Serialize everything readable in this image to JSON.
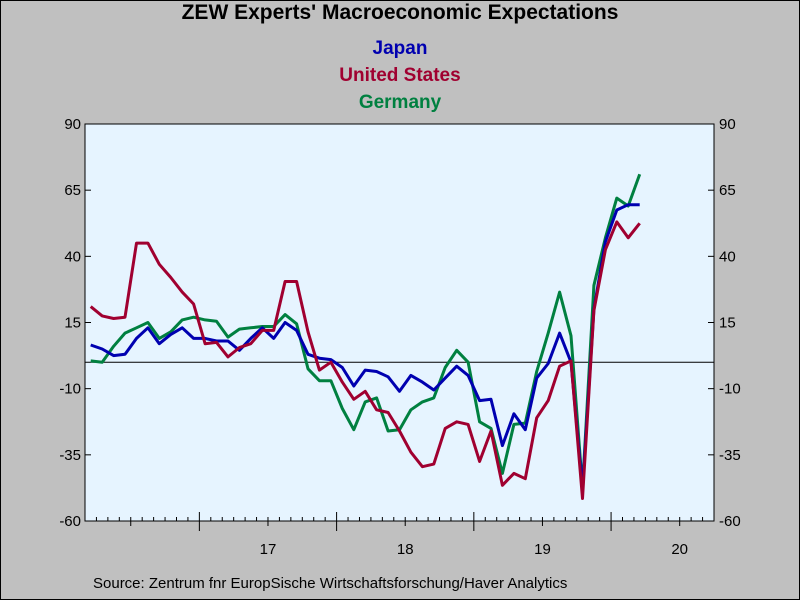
{
  "chart_data": {
    "type": "line",
    "title": "ZEW Experts' Macroeconomic Expectations",
    "source": "Source:  Zentrum fnr EuropSische Wirtschaftsforschung/Haver Analytics",
    "ylim": [
      -60,
      90
    ],
    "yticks": [
      90,
      65,
      40,
      15,
      -10,
      -35,
      -60
    ],
    "year_labels": [
      "17",
      "18",
      "19",
      "20"
    ],
    "x": [
      "2016-03",
      "2016-04",
      "2016-05",
      "2016-06",
      "2016-07",
      "2016-08",
      "2016-09",
      "2016-10",
      "2016-11",
      "2016-12",
      "2017-01",
      "2017-02",
      "2017-03",
      "2017-04",
      "2017-05",
      "2017-06",
      "2017-07",
      "2017-08",
      "2017-09",
      "2017-10",
      "2017-11",
      "2017-12",
      "2018-01",
      "2018-02",
      "2018-03",
      "2018-04",
      "2018-05",
      "2018-06",
      "2018-07",
      "2018-08",
      "2018-09",
      "2018-10",
      "2018-11",
      "2018-12",
      "2019-01",
      "2019-02",
      "2019-03",
      "2019-04",
      "2019-05",
      "2019-06",
      "2019-07",
      "2019-08",
      "2019-09",
      "2019-10",
      "2019-11",
      "2019-12",
      "2020-01",
      "2020-02",
      "2020-03",
      "2020-04",
      "2020-05",
      "2020-06",
      "2020-07",
      "2020-08",
      "2020-09"
    ],
    "reference_line": 0,
    "grid": false,
    "legend_position": "top",
    "series": [
      {
        "name": "Japan",
        "color": "#0000b0",
        "values": [
          6.5,
          5,
          2.5,
          3,
          9,
          13,
          7,
          10.5,
          13,
          9,
          9,
          8,
          8,
          4.5,
          9,
          13,
          9,
          15,
          12,
          3,
          1.5,
          1,
          -2,
          -9,
          -3,
          -3.5,
          -5.5,
          -11,
          -5,
          -7.5,
          -10.5,
          -6,
          -1.5,
          -5,
          -14.5,
          -14,
          -31.5,
          -19.5,
          -25.5,
          -6,
          -0.5,
          11,
          0,
          -48,
          20,
          45.5,
          57.5,
          59.5,
          59.5,
          null,
          null,
          null,
          null,
          null,
          null
        ]
      },
      {
        "name": "United States",
        "color": "#a00030",
        "values": [
          21,
          17.5,
          16.5,
          17,
          45,
          45,
          37,
          32,
          26.5,
          22,
          7,
          7.5,
          2,
          5.5,
          7,
          12,
          12,
          30.5,
          30.5,
          11.5,
          -3,
          0,
          -7.5,
          -14,
          -11,
          -18,
          -19,
          -26,
          -34,
          -39.5,
          -38.5,
          -25,
          -22.5,
          -23.5,
          -37.5,
          -26,
          -46.5,
          -42,
          -44,
          -21,
          -14.5,
          -1.5,
          0.5,
          -51.5,
          19.5,
          42.5,
          53,
          47,
          52.5,
          null,
          null,
          null,
          null,
          null,
          null
        ]
      },
      {
        "name": "Germany",
        "color": "#008040",
        "values": [
          0.5,
          0,
          6,
          11,
          13,
          15,
          9,
          11.5,
          16,
          17,
          16,
          15.5,
          9.5,
          12.5,
          13,
          13.5,
          13.5,
          18,
          14.5,
          -2.5,
          -7,
          -7,
          -17.5,
          -25.5,
          -15,
          -13.5,
          -26,
          -25.5,
          -18,
          -15,
          -13.5,
          -2,
          4.5,
          0,
          -22.5,
          -25,
          -42,
          -23.5,
          -23,
          -3.5,
          11,
          26.5,
          10,
          -47.5,
          29,
          47,
          62,
          59,
          71,
          null,
          null,
          null,
          null,
          null,
          null
        ]
      }
    ]
  }
}
